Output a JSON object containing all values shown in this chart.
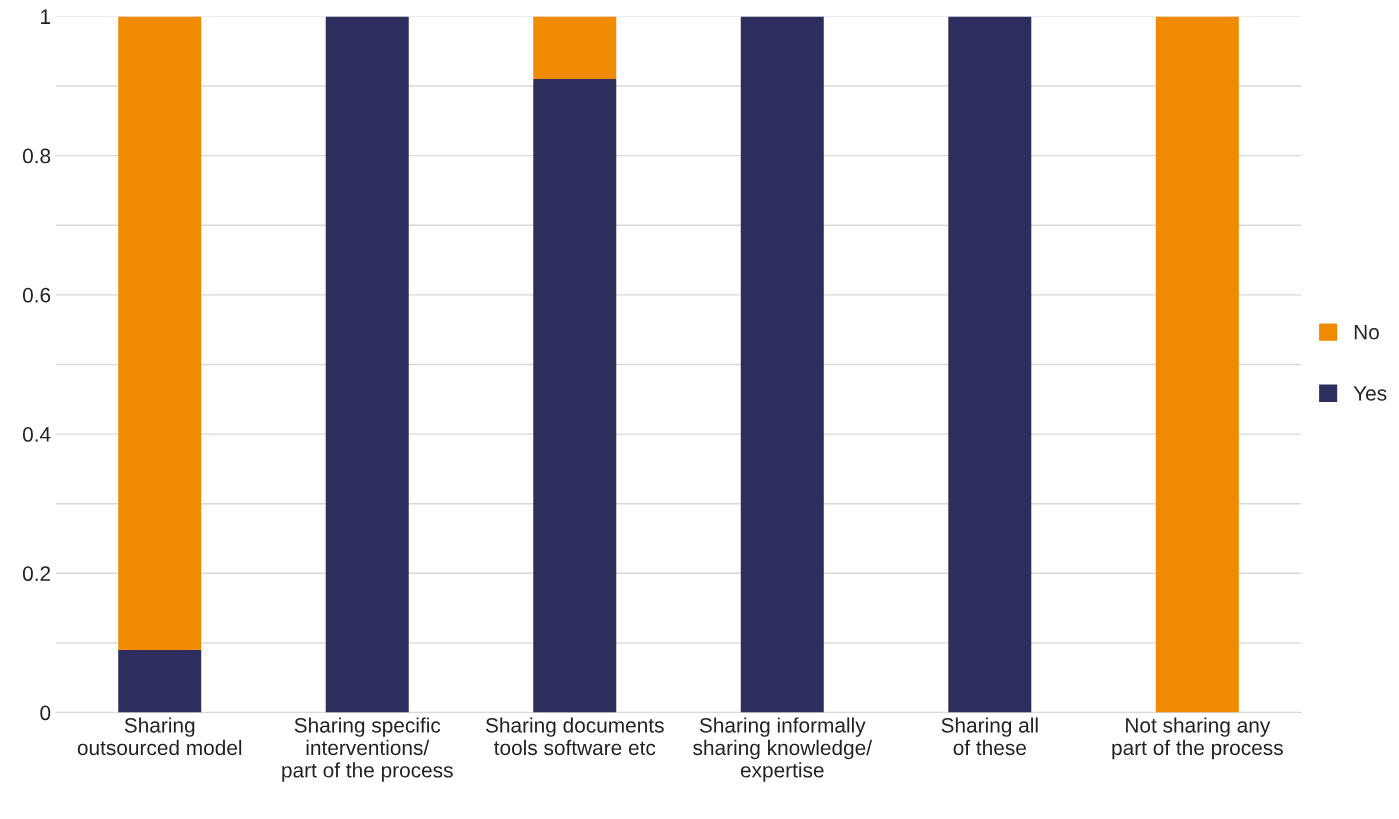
{
  "chart_data": {
    "type": "bar",
    "stacked": true,
    "categories": [
      "Sharing\noutsourced model",
      "Sharing specific\ninterventions/\npart of the process",
      "Sharing documents\ntools software etc",
      "Sharing informally\nsharing knowledge/\nexpertise",
      "Sharing all\nof these",
      "Not sharing any\npart of the process"
    ],
    "series": [
      {
        "name": "Yes",
        "color": "#2e2e5e",
        "values": [
          0.09,
          1,
          0.91,
          1,
          1,
          0
        ]
      },
      {
        "name": "No",
        "color": "#f08a00",
        "values": [
          0.91,
          0,
          0.09,
          0,
          0,
          1
        ]
      }
    ],
    "ylim": [
      0,
      1
    ],
    "yticks": [
      0,
      {
        "value": 0.1,
        "label": null
      },
      0.2,
      {
        "value": 0.3,
        "label": null
      },
      0.4,
      {
        "value": 0.5,
        "label": null
      },
      0.6,
      {
        "value": 0.7,
        "label": null
      },
      0.8,
      {
        "value": 0.9,
        "label": null
      },
      1
    ],
    "grid": "y",
    "legend": "right"
  }
}
